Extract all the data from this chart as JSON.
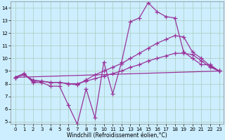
{
  "background_color": "#cceeff",
  "grid_color": "#aaccbb",
  "line_color": "#993399",
  "marker": "+",
  "markersize": 4,
  "linewidth": 0.9,
  "markeredgewidth": 0.9,
  "xlim": [
    -0.5,
    23.5
  ],
  "ylim": [
    4.8,
    14.5
  ],
  "xlabel": "Windchill (Refroidissement éolien,°C)",
  "xlabel_fontsize": 5.5,
  "ytick_labels": [
    "5",
    "6",
    "7",
    "8",
    "9",
    "10",
    "11",
    "12",
    "13",
    "14"
  ],
  "ytick_values": [
    5,
    6,
    7,
    8,
    9,
    10,
    11,
    12,
    13,
    14
  ],
  "xtick_labels": [
    "0",
    "1",
    "2",
    "3",
    "4",
    "5",
    "6",
    "7",
    "8",
    "9",
    "10",
    "11",
    "12",
    "13",
    "14",
    "15",
    "16",
    "17",
    "18",
    "19",
    "20",
    "21",
    "22",
    "23"
  ],
  "xtick_values": [
    0,
    1,
    2,
    3,
    4,
    5,
    6,
    7,
    8,
    9,
    10,
    11,
    12,
    13,
    14,
    15,
    16,
    17,
    18,
    19,
    20,
    21,
    22,
    23
  ],
  "tick_fontsize": 5.0,
  "series": [
    {
      "x": [
        0,
        1,
        2,
        3,
        4,
        5,
        6,
        7,
        8,
        9,
        10,
        11,
        12,
        13,
        14,
        15,
        16,
        17,
        18,
        19,
        20,
        21,
        22,
        23
      ],
      "y": [
        8.5,
        8.8,
        8.1,
        8.1,
        7.8,
        7.8,
        6.3,
        4.8,
        7.6,
        5.3,
        9.7,
        7.2,
        9.7,
        12.9,
        13.2,
        14.4,
        13.7,
        13.3,
        13.2,
        10.5,
        10.0,
        9.5,
        9.5,
        9.0
      ]
    },
    {
      "x": [
        0,
        1,
        2,
        3,
        4,
        5,
        6,
        7,
        8,
        9,
        10,
        11,
        12,
        13,
        14,
        15,
        16,
        17,
        18,
        19,
        20,
        21,
        22,
        23
      ],
      "y": [
        8.5,
        8.8,
        8.2,
        8.2,
        8.1,
        8.1,
        8.0,
        7.9,
        8.3,
        8.7,
        9.0,
        9.3,
        9.6,
        10.0,
        10.4,
        10.8,
        11.2,
        11.5,
        11.8,
        11.7,
        10.5,
        10.0,
        9.4,
        9.0
      ]
    },
    {
      "x": [
        0,
        1,
        2,
        3,
        4,
        5,
        6,
        7,
        8,
        9,
        10,
        11,
        12,
        13,
        14,
        15,
        16,
        17,
        18,
        19,
        20,
        21,
        22,
        23
      ],
      "y": [
        8.5,
        8.7,
        8.3,
        8.2,
        8.1,
        8.1,
        8.0,
        8.0,
        8.2,
        8.4,
        8.6,
        8.8,
        9.0,
        9.3,
        9.5,
        9.8,
        10.0,
        10.2,
        10.4,
        10.4,
        10.3,
        9.8,
        9.3,
        9.0
      ]
    },
    {
      "x": [
        0,
        23
      ],
      "y": [
        8.5,
        9.0
      ]
    }
  ]
}
